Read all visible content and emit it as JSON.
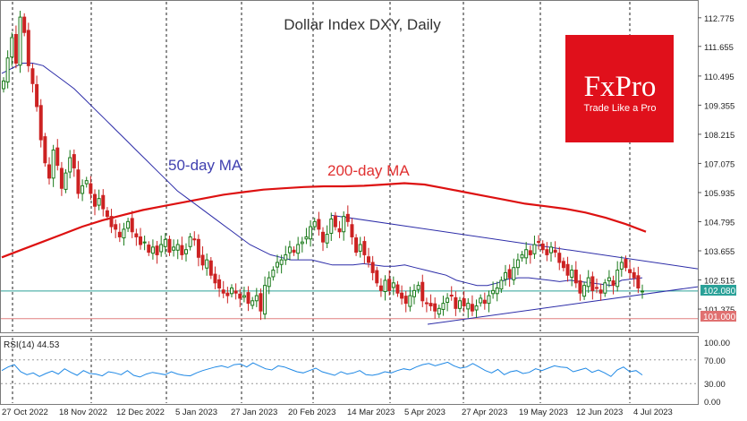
{
  "chart_data": {
    "type": "candlestick",
    "title": "Dollar Index DXY, Daily",
    "timeframe": "Daily",
    "colors": {
      "up": "#1a7a1a",
      "down": "#cc2222",
      "ma50": "#2c2ca8",
      "ma200": "#dd1111",
      "trendline": "#2c2ca8",
      "support_line": "#2aa198",
      "level_line": "#e08080"
    },
    "annotations": [
      {
        "text": "50-day MA",
        "color": "#4040b0"
      },
      {
        "text": "200-day MA",
        "color": "#e03030"
      }
    ],
    "x_axis_labels": [
      "27 Oct 2022",
      "18 Nov 2022",
      "12 Dec 2022",
      "5 Jan 2023",
      "27 Jan 2023",
      "20 Feb 2023",
      "14 Mar 2023",
      "5 Apr 2023",
      "27 Apr 2023",
      "19 May 2023",
      "12 Jun 2023",
      "4 Jul 2023"
    ],
    "y_axis_labels": [
      "112.775",
      "111.655",
      "110.495",
      "109.355",
      "108.215",
      "107.075",
      "105.935",
      "104.795",
      "103.655",
      "102.515",
      "101.375"
    ],
    "price_tags": [
      {
        "value": "102.080",
        "color": "#2aa198"
      },
      {
        "value": "101.000",
        "color": "#e07070"
      }
    ],
    "ylim": [
      100.5,
      113.4
    ],
    "ohlc_closes": [
      110.3,
      111.2,
      112.0,
      111.0,
      112.8,
      112.2,
      110.9,
      110.2,
      109.3,
      108.0,
      107.1,
      106.5,
      107.6,
      107.0,
      106.1,
      106.7,
      107.3,
      106.9,
      105.9,
      106.2,
      106.4,
      105.9,
      105.4,
      105.7,
      105.3,
      105.0,
      104.6,
      104.5,
      104.2,
      104.5,
      104.8,
      104.4,
      104.2,
      103.9,
      104.0,
      103.6,
      103.8,
      103.5,
      103.9,
      104.1,
      103.6,
      103.8,
      103.9,
      103.5,
      103.7,
      104.2,
      104.1,
      103.4,
      103.1,
      103.3,
      102.7,
      102.4,
      102.2,
      102.0,
      101.9,
      102.2,
      102.0,
      101.8,
      101.9,
      101.6,
      101.7,
      101.9,
      101.3,
      102.3,
      102.6,
      102.9,
      103.2,
      103.3,
      103.5,
      103.8,
      103.6,
      103.9,
      104.0,
      104.2,
      104.6,
      104.8,
      104.5,
      104.0,
      104.3,
      104.9,
      104.6,
      104.4,
      105.0,
      104.8,
      104.2,
      103.6,
      103.9,
      103.5,
      103.2,
      102.8,
      102.4,
      102.1,
      102.5,
      102.1,
      102.4,
      102.0,
      101.8,
      101.6,
      101.9,
      102.1,
      102.3,
      101.7,
      101.6,
      101.5,
      101.3,
      101.4,
      101.6,
      101.8,
      101.9,
      101.4,
      101.7,
      101.5,
      101.6,
      101.3,
      101.5,
      101.8,
      101.6,
      101.9,
      102.1,
      102.2,
      102.5,
      102.8,
      102.6,
      103.0,
      103.3,
      103.5,
      103.7,
      103.5,
      103.9,
      104.0,
      103.7,
      103.5,
      103.8,
      103.6,
      103.2,
      103.0,
      102.7,
      102.9,
      102.4,
      102.0,
      102.3,
      102.6,
      102.1,
      102.2,
      102.0,
      102.4,
      102.6,
      102.3,
      102.9,
      103.2,
      103.0,
      102.8,
      102.6,
      102.2,
      102.08
    ],
    "ma50": [
      110.6,
      110.8,
      111.0,
      111.0,
      110.9,
      110.6,
      110.3,
      110.0,
      109.6,
      109.2,
      108.8,
      108.4,
      108.0,
      107.6,
      107.2,
      106.8,
      106.4,
      106.0,
      105.7,
      105.4,
      105.1,
      104.8,
      104.5,
      104.2,
      103.9,
      103.7,
      103.5,
      103.4,
      103.3,
      103.3,
      103.3,
      103.2,
      103.1,
      103.1,
      103.1,
      103.15,
      103.1,
      103.05,
      103.05,
      103.1,
      103.0,
      102.9,
      102.8,
      102.7,
      102.5,
      102.4,
      102.3,
      102.3,
      102.4,
      102.55,
      102.6,
      102.6,
      102.55,
      102.5,
      102.45,
      102.5,
      102.45,
      102.4,
      102.35,
      102.3,
      102.5,
      102.55,
      102.6
    ],
    "ma200": [
      103.4,
      103.7,
      104.0,
      104.3,
      104.6,
      104.85,
      105.05,
      105.25,
      105.4,
      105.55,
      105.7,
      105.85,
      105.95,
      106.05,
      106.1,
      106.15,
      106.18,
      106.18,
      106.2,
      106.25,
      106.3,
      106.25,
      106.1,
      105.95,
      105.8,
      105.65,
      105.5,
      105.4,
      105.3,
      105.15,
      104.95,
      104.7,
      104.4
    ],
    "rsi": {
      "label": "RSI(14) 44.53",
      "ticks": [
        "100.00",
        "70.00",
        "30.00",
        "0.00"
      ],
      "values": [
        52,
        58,
        62,
        50,
        45,
        48,
        42,
        47,
        51,
        46,
        55,
        49,
        44,
        52,
        47,
        46,
        43,
        50,
        48,
        45,
        52,
        44,
        41,
        46,
        49,
        47,
        45,
        50,
        46,
        44,
        43,
        48,
        52,
        55,
        58,
        60,
        57,
        62,
        63,
        58,
        65,
        60,
        55,
        53,
        60,
        58,
        54,
        50,
        48,
        52,
        56,
        50,
        47,
        44,
        50,
        46,
        48,
        52,
        45,
        44,
        46,
        50,
        48,
        52,
        55,
        53,
        58,
        62,
        64,
        60,
        63,
        66,
        60,
        56,
        58,
        64,
        58,
        52,
        48,
        54,
        45,
        50,
        52,
        47,
        49,
        55,
        52,
        56,
        60,
        58,
        57,
        50,
        53,
        56,
        49,
        53,
        48,
        42,
        53,
        58,
        50,
        52,
        44.53
      ]
    }
  },
  "logo": {
    "brand": "FxPro",
    "tagline": "Trade Like a Pro",
    "bg": "#e0101b"
  }
}
